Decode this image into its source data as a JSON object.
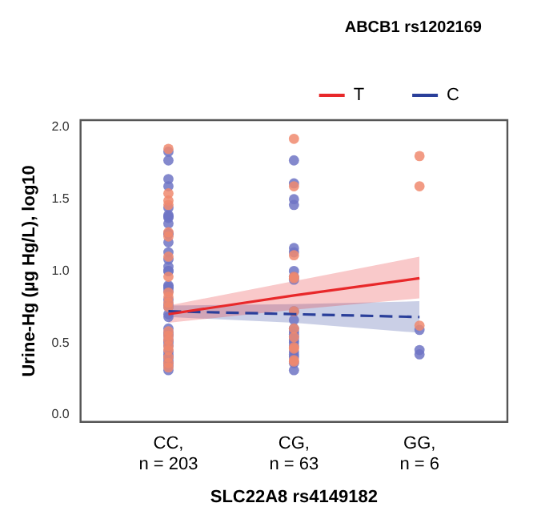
{
  "chart_data": {
    "type": "scatter",
    "xlabel": "SLC22A8 rs4149182",
    "ylabel": "Urine-Hg (µg Hg/L), log10",
    "legend_title": "ABCB1 rs1202169",
    "legend": "top right",
    "grid": false,
    "marker": "circle",
    "categories": [
      "CC,\nn = 203",
      "CG,\nn = 63",
      "GG,\nn = 6"
    ],
    "ylim": [
      -0.05,
      2.05
    ],
    "yticks": [
      {
        "value": 0,
        "label": "0.0"
      },
      {
        "value": 0.5,
        "label": "0.5"
      },
      {
        "value": 1,
        "label": "1.0"
      },
      {
        "value": 1.5,
        "label": "1.5"
      },
      {
        "value": 2,
        "label": "2.0"
      }
    ],
    "series": [
      {
        "type": "scatter",
        "color": "#f08a6e",
        "x": [
          "CC,\nn = 203",
          "CC,\nn = 203",
          "CC,\nn = 203",
          "CC,\nn = 203",
          "CC,\nn = 203",
          "CC,\nn = 203",
          "CC,\nn = 203",
          "CC,\nn = 203",
          "CC,\nn = 203",
          "CC,\nn = 203",
          "CC,\nn = 203",
          "CC,\nn = 203",
          "CC,\nn = 203",
          "CC,\nn = 203",
          "CC,\nn = 203",
          "CC,\nn = 203",
          "CC,\nn = 203",
          "CC,\nn = 203",
          "CC,\nn = 203",
          "CC,\nn = 203",
          "CG,\nn = 63",
          "CG,\nn = 63",
          "CG,\nn = 63",
          "CG,\nn = 63",
          "CG,\nn = 63",
          "CG,\nn = 63",
          "CG,\nn = 63",
          "CG,\nn = 63",
          "CG,\nn = 63",
          "CG,\nn = 63",
          "CG,\nn = 63",
          "CG,\nn = 63",
          "GG,\nn = 6",
          "GG,\nn = 6",
          "GG,\nn = 6"
        ],
        "values": [
          1.85,
          1.54,
          1.49,
          1.46,
          1.27,
          1.24,
          1.1,
          0.96,
          0.85,
          0.82,
          0.78,
          0.75,
          0.58,
          0.55,
          0.52,
          0.48,
          0.45,
          0.4,
          0.36,
          0.33,
          1.92,
          1.59,
          1.11,
          0.96,
          0.95,
          0.72,
          0.6,
          0.54,
          0.47,
          0.46,
          0.38,
          0.37,
          1.8,
          1.59,
          0.62
        ]
      },
      {
        "type": "scatter",
        "color": "#6e74c4",
        "x": [
          "CC,\nn = 203",
          "CC,\nn = 203",
          "CC,\nn = 203",
          "CC,\nn = 203",
          "CC,\nn = 203",
          "CC,\nn = 203",
          "CC,\nn = 203",
          "CC,\nn = 203",
          "CC,\nn = 203",
          "CC,\nn = 203",
          "CC,\nn = 203",
          "CC,\nn = 203",
          "CC,\nn = 203",
          "CC,\nn = 203",
          "CC,\nn = 203",
          "CC,\nn = 203",
          "CC,\nn = 203",
          "CC,\nn = 203",
          "CC,\nn = 203",
          "CC,\nn = 203",
          "CC,\nn = 203",
          "CC,\nn = 203",
          "CC,\nn = 203",
          "CC,\nn = 203",
          "CC,\nn = 203",
          "CC,\nn = 203",
          "CC,\nn = 203",
          "CC,\nn = 203",
          "CC,\nn = 203",
          "CC,\nn = 203",
          "CC,\nn = 203",
          "CC,\nn = 203",
          "CC,\nn = 203",
          "CC,\nn = 203",
          "CC,\nn = 203",
          "CC,\nn = 203",
          "CC,\nn = 203",
          "CC,\nn = 203",
          "CC,\nn = 203",
          "CG,\nn = 63",
          "CG,\nn = 63",
          "CG,\nn = 63",
          "CG,\nn = 63",
          "CG,\nn = 63",
          "CG,\nn = 63",
          "CG,\nn = 63",
          "CG,\nn = 63",
          "CG,\nn = 63",
          "CG,\nn = 63",
          "CG,\nn = 63",
          "CG,\nn = 63",
          "CG,\nn = 63",
          "CG,\nn = 63",
          "CG,\nn = 63",
          "CG,\nn = 63",
          "CG,\nn = 63",
          "CG,\nn = 63",
          "CG,\nn = 63",
          "CG,\nn = 63",
          "CG,\nn = 63",
          "CG,\nn = 63",
          "CG,\nn = 63",
          "GG,\nn = 6",
          "GG,\nn = 6",
          "GG,\nn = 6"
        ],
        "values": [
          1.83,
          1.77,
          1.64,
          1.59,
          1.44,
          1.39,
          1.38,
          1.37,
          1.33,
          1.26,
          1.26,
          1.2,
          1.13,
          1.08,
          1.03,
          1.0,
          1.0,
          0.9,
          0.89,
          0.88,
          0.86,
          0.8,
          0.77,
          0.75,
          0.7,
          0.68,
          0.6,
          0.57,
          0.55,
          0.52,
          0.5,
          0.48,
          0.44,
          0.42,
          0.4,
          0.38,
          0.36,
          0.34,
          0.31,
          1.77,
          1.61,
          1.5,
          1.46,
          1.16,
          1.13,
          1.0,
          0.96,
          0.94,
          0.72,
          0.66,
          0.6,
          0.58,
          0.56,
          0.54,
          0.52,
          0.5,
          0.48,
          0.44,
          0.42,
          0.4,
          0.36,
          0.31,
          0.59,
          0.45,
          0.42
        ]
      },
      {
        "type": "line",
        "name": "T",
        "color": "#e8282a",
        "line_style": "solid",
        "marker": "none",
        "x": [
          "CC,\nn = 203",
          "CG,\nn = 63",
          "GG,\nn = 6"
        ],
        "values": [
          0.7,
          0.83,
          0.95
        ],
        "lower": [
          0.64,
          0.73,
          0.81
        ],
        "upper": [
          0.76,
          0.93,
          1.1
        ]
      },
      {
        "type": "line",
        "name": "C",
        "color": "#2a3f9a",
        "line_style": "dashed",
        "marker": "none",
        "x": [
          "CC,\nn = 203",
          "CG,\nn = 63",
          "GG,\nn = 6"
        ],
        "values": [
          0.72,
          0.7,
          0.68
        ],
        "lower": [
          0.68,
          0.64,
          0.57
        ],
        "upper": [
          0.76,
          0.77,
          0.79
        ]
      }
    ]
  }
}
